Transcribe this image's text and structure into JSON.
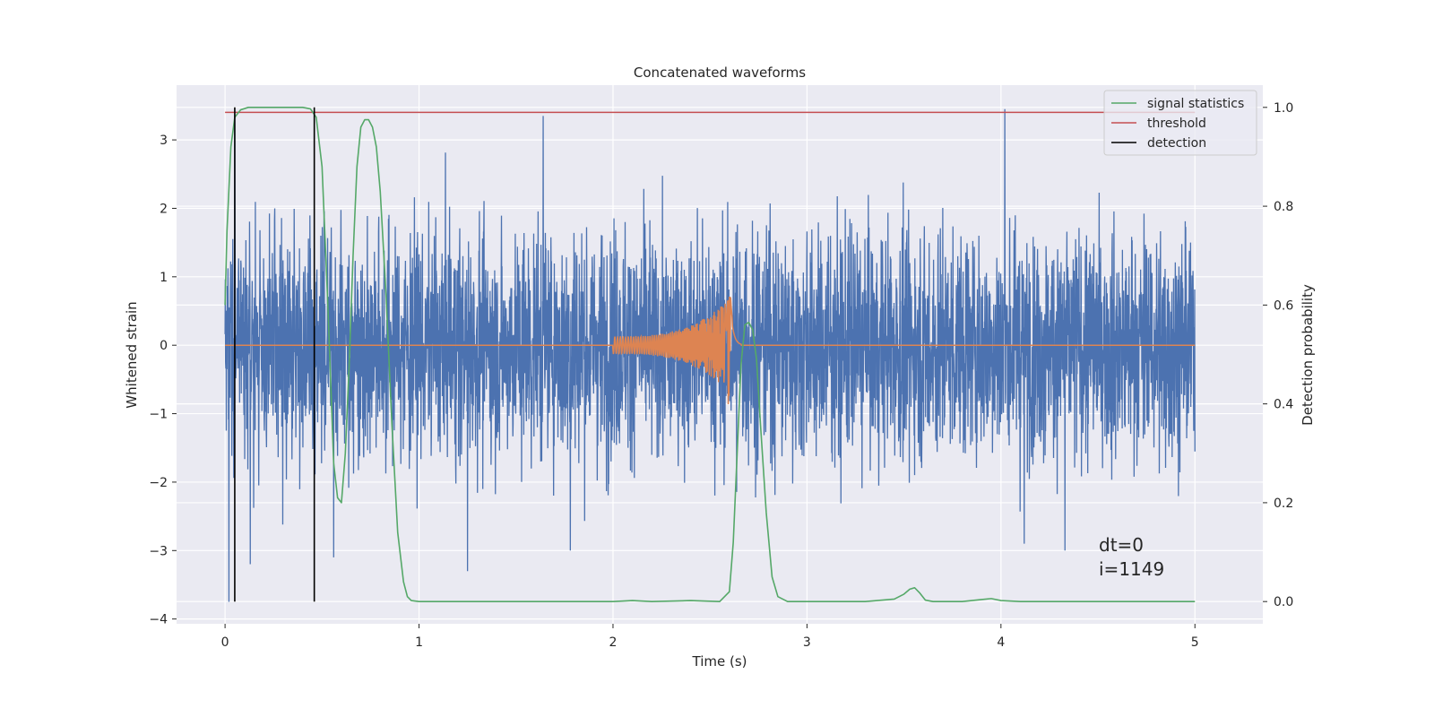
{
  "chart_data": {
    "type": "line",
    "title": "Concatenated waveforms",
    "xlabel": "Time (s)",
    "ylabel": "Whitened strain",
    "y2label": "Detection probability",
    "xlim": [
      -0.25,
      5.35
    ],
    "ylim": [
      -4.07,
      3.8
    ],
    "y2lim": [
      -0.045,
      1.045
    ],
    "xticks": [
      0,
      1,
      2,
      3,
      4,
      5
    ],
    "yticks": [
      -4,
      -3,
      -2,
      -1,
      0,
      1,
      2,
      3
    ],
    "y2ticks": [
      0.0,
      0.2,
      0.4,
      0.6,
      0.8,
      1.0
    ],
    "grid": true,
    "legend_position": "top-right",
    "series": [
      {
        "name": "",
        "role": "whitened-strain-noise",
        "axis": "left",
        "color": "#4c72b0",
        "x_range": [
          0,
          5
        ],
        "typical_amplitude": 1.5,
        "extreme_values": [
          {
            "x": 0.02,
            "y": -3.75
          },
          {
            "x": 0.05,
            "y": 3.45
          },
          {
            "x": 0.13,
            "y": -3.2
          },
          {
            "x": 0.56,
            "y": -3.1
          },
          {
            "x": 1.25,
            "y": -3.3
          },
          {
            "x": 1.64,
            "y": 3.35
          },
          {
            "x": 1.78,
            "y": -3.0
          },
          {
            "x": 4.02,
            "y": 3.45
          },
          {
            "x": 4.12,
            "y": -2.9
          },
          {
            "x": 4.33,
            "y": -3.0
          }
        ]
      },
      {
        "name": "",
        "role": "injected-chirp",
        "axis": "left",
        "color": "#dd8452",
        "x_range": [
          0,
          5
        ],
        "chirp_start": 2.0,
        "chirp_peak_time": 2.6,
        "chirp_end": 2.66,
        "peak_max": 0.7,
        "peak_min": -1.0
      },
      {
        "name": "signal statistics",
        "axis": "right",
        "color": "#55a868",
        "x": [
          0,
          0.01,
          0.03,
          0.05,
          0.08,
          0.12,
          0.2,
          0.3,
          0.4,
          0.44,
          0.47,
          0.5,
          0.53,
          0.56,
          0.58,
          0.6,
          0.62,
          0.64,
          0.66,
          0.68,
          0.7,
          0.72,
          0.74,
          0.76,
          0.78,
          0.8,
          0.83,
          0.86,
          0.89,
          0.92,
          0.94,
          0.96,
          1.0,
          1.5,
          2.0,
          2.1,
          2.2,
          2.4,
          2.55,
          2.6,
          2.62,
          2.64,
          2.66,
          2.68,
          2.7,
          2.72,
          2.74,
          2.76,
          2.79,
          2.82,
          2.85,
          2.9,
          3.0,
          3.3,
          3.45,
          3.5,
          3.53,
          3.555,
          3.58,
          3.61,
          3.65,
          3.8,
          3.9,
          3.95,
          4.0,
          4.1,
          4.5,
          5.0
        ],
        "y": [
          0.6,
          0.75,
          0.92,
          0.98,
          0.995,
          1.0,
          1.0,
          1.0,
          1.0,
          0.997,
          0.98,
          0.88,
          0.6,
          0.28,
          0.21,
          0.2,
          0.3,
          0.48,
          0.7,
          0.88,
          0.96,
          0.975,
          0.975,
          0.96,
          0.92,
          0.83,
          0.62,
          0.36,
          0.14,
          0.04,
          0.01,
          0.002,
          0.0,
          0.0,
          0.0,
          0.002,
          0.0,
          0.002,
          0.0,
          0.02,
          0.12,
          0.3,
          0.48,
          0.56,
          0.565,
          0.55,
          0.49,
          0.36,
          0.18,
          0.05,
          0.01,
          0.0,
          0.0,
          0.0,
          0.005,
          0.015,
          0.025,
          0.028,
          0.018,
          0.003,
          0.0,
          0.0,
          0.004,
          0.006,
          0.002,
          0.0,
          0.0,
          0.0
        ]
      },
      {
        "name": "threshold",
        "axis": "right",
        "color": "#c44e52",
        "x": [
          0,
          5
        ],
        "y": [
          0.99,
          0.99
        ]
      },
      {
        "name": "detection",
        "axis": "right",
        "color": "#000000",
        "type": "vlines",
        "x": [
          0.05,
          0.46
        ],
        "ymin": 0.0,
        "ymax": 1.0
      }
    ],
    "annotation": {
      "lines": [
        "dt=0",
        "i=1149"
      ],
      "x": 4.5,
      "y": -3.0
    }
  }
}
